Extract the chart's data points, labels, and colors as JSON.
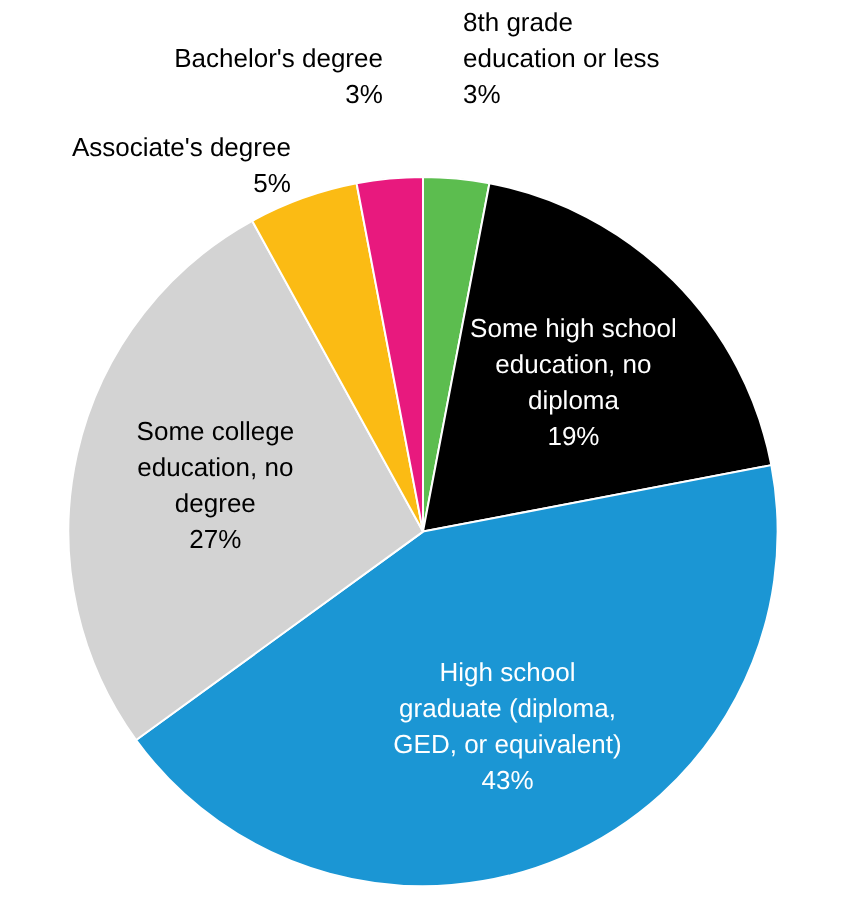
{
  "chart_data": {
    "type": "pie",
    "categories": [
      "8th grade education or less",
      "Some high school education, no diploma",
      "High school graduate (diploma, GED, or equivalent)",
      "Some college education, no degree",
      "Associate's degree",
      "Bachelor's degree"
    ],
    "values": [
      3,
      19,
      43,
      27,
      5,
      3
    ],
    "value_labels": [
      "3%",
      "19%",
      "43%",
      "27%",
      "5%",
      "3%"
    ],
    "colors": [
      "#5cbd4f",
      "#000000",
      "#1b96d4",
      "#d3d3d3",
      "#fbbb14",
      "#e8197e"
    ]
  }
}
